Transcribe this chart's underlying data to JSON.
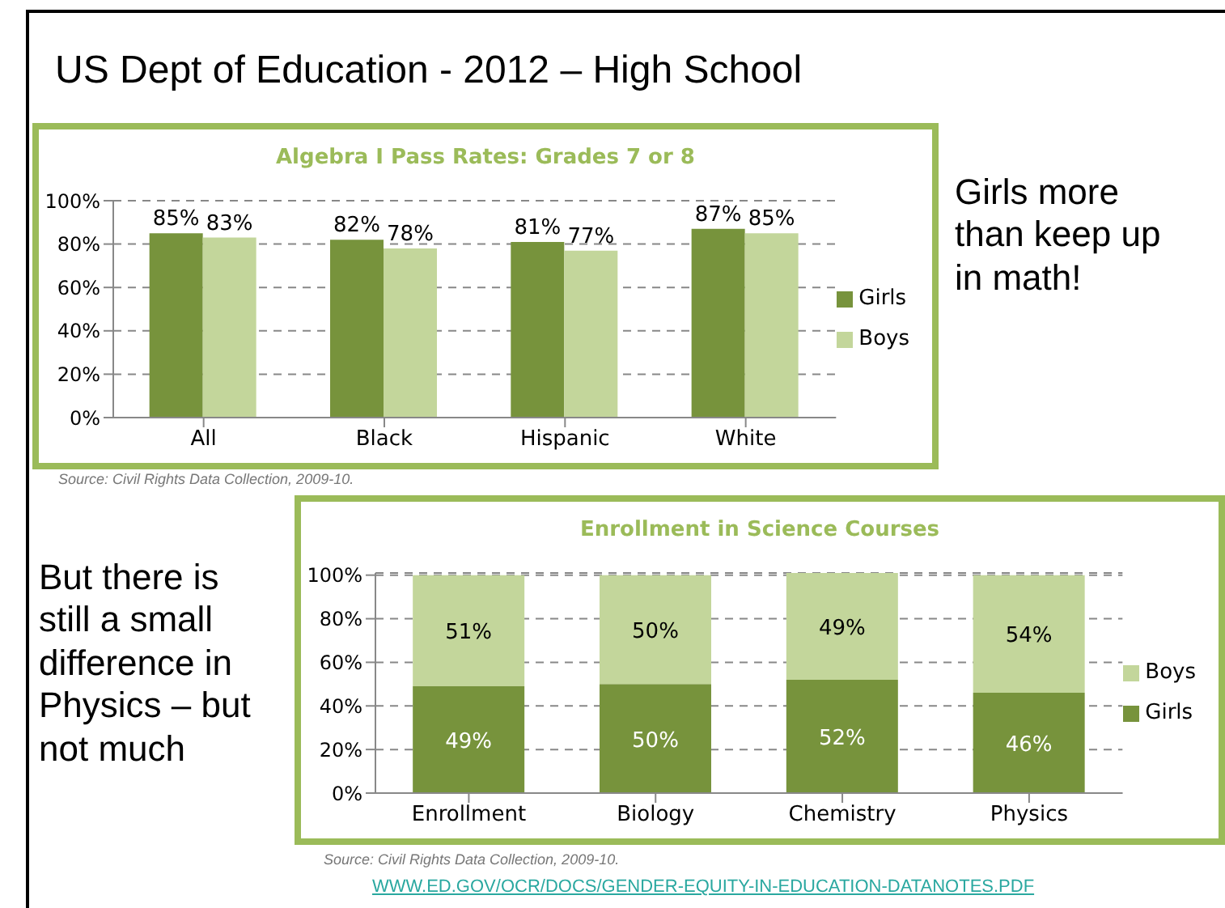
{
  "chart_data": [
    {
      "type": "bar",
      "title": "Algebra I Pass Rates: Grades 7 or 8",
      "categories": [
        "All",
        "Black",
        "Hispanic",
        "White"
      ],
      "series": [
        {
          "name": "Girls",
          "color": "#77933c",
          "values": [
            85,
            82,
            81,
            87
          ],
          "value_labels": [
            "85%",
            "82%",
            "81%",
            "87%"
          ]
        },
        {
          "name": "Boys",
          "color": "#c3d69b",
          "values": [
            83,
            78,
            77,
            85
          ],
          "value_labels": [
            "83%",
            "78%",
            "77%",
            "85%"
          ]
        }
      ],
      "ylim": [
        0,
        100
      ],
      "yticks": [
        {
          "value": 0,
          "label": "0%"
        },
        {
          "value": 20,
          "label": "20%"
        },
        {
          "value": 40,
          "label": "40%"
        },
        {
          "value": 60,
          "label": "60%"
        },
        {
          "value": 80,
          "label": "80%"
        },
        {
          "value": 100,
          "label": "100%"
        }
      ],
      "grid": "y",
      "legend": "right",
      "annotations": [
        "US Dept of Education -  2012 – High School",
        "Girls more than keep up in math!",
        "Source: Civil Rights Data Collection, 2009-10."
      ]
    },
    {
      "type": "bar",
      "title": "Enrollment in Science Courses",
      "categories": [
        "Enrollment",
        "Biology",
        "Chemistry",
        "Physics"
      ],
      "stacked": true,
      "series": [
        {
          "name": "Girls",
          "color": "#77933c",
          "values": [
            49,
            50,
            52,
            46
          ],
          "value_labels": [
            "49%",
            "50%",
            "52%",
            "46%"
          ]
        },
        {
          "name": "Boys",
          "color": "#c3d69b",
          "values": [
            51,
            50,
            49,
            54
          ],
          "value_labels": [
            "51%",
            "50%",
            "49%",
            "54%"
          ]
        }
      ],
      "ylim": [
        0,
        101
      ],
      "yticks": [
        {
          "value": 0,
          "label": "0%"
        },
        {
          "value": 20,
          "label": "20%"
        },
        {
          "value": 40,
          "label": "40%"
        },
        {
          "value": 60,
          "label": "60%"
        },
        {
          "value": 80,
          "label": "80%"
        },
        {
          "value": 100,
          "label": "100%"
        }
      ],
      "grid": "y",
      "legend": "right",
      "annotations": [
        "But there is still a small difference in Physics – but not much",
        "Source: Civil Rights Data Collection, 2009-10.",
        "WWW.ED.GOV/OCR/DOCS/GENDER-EQUITY-IN-EDUCATION-DATANOTES.PDF"
      ]
    }
  ]
}
